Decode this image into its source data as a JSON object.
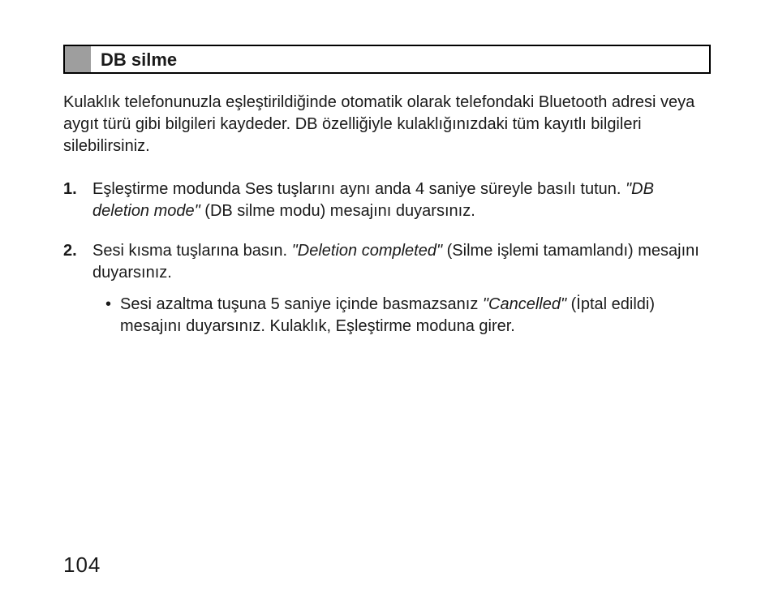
{
  "heading": "DB silme",
  "intro": "Kulaklık telefonunuzla eşleştirildiğinde otomatik olarak telefondaki Bluetooth adresi veya aygıt türü gibi bilgileri kaydeder.  DB özelliğiyle kulaklığınızdaki tüm kayıtlı bilgileri silebilirsiniz.",
  "steps": [
    {
      "num": "1.",
      "pre": "Eşleştirme modunda Ses tuşlarını aynı anda 4 saniye süreyle basılı tutun. ",
      "em": "\"DB deletion mode\"",
      "post": " (DB silme modu) mesajını duyarsınız."
    },
    {
      "num": "2.",
      "pre": "Sesi kısma tuşlarına basın. ",
      "em": "\"Deletion completed\"",
      "post": " (Silme işlemi tamamlandı) mesajını duyarsınız.",
      "sub": {
        "bullet": "•",
        "pre": "Sesi azaltma tuşuna 5 saniye içinde basmazsanız ",
        "em": "\"Cancelled\"",
        "post": " (İptal edildi) mesajını duyarsınız. Kulaklık, Eşleştirme moduna girer."
      }
    }
  ],
  "page_number": "104",
  "colors": {
    "square": "#9e9e9e",
    "border": "#000000",
    "text": "#1a1a1a",
    "bg": "#ffffff"
  }
}
